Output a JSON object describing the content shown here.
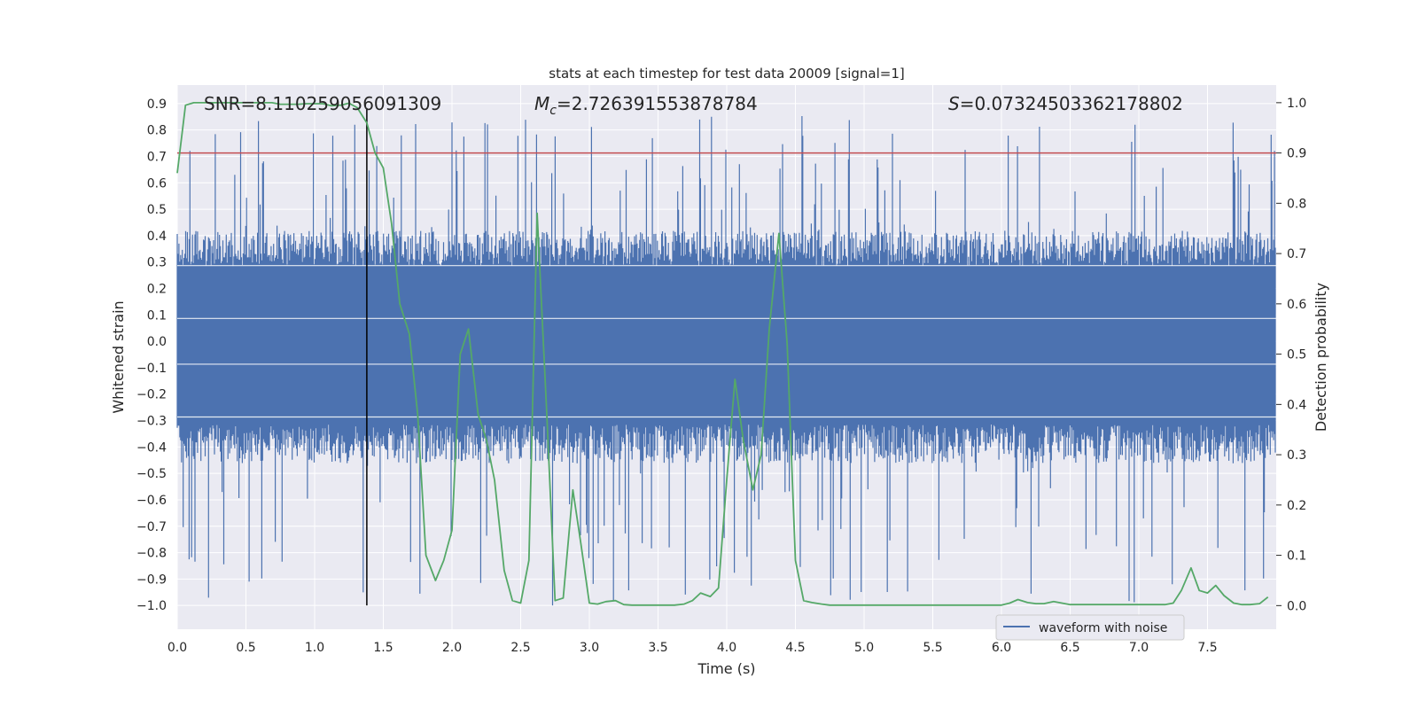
{
  "chart_data": {
    "type": "line",
    "title": "stats at each timestep for test data 20009 [signal=1]",
    "xlabel": "Time (s)",
    "ylabel_left": "Whitened strain",
    "ylabel_right": "Detection probability",
    "xlim": [
      0,
      8
    ],
    "ylim_left": [
      -1.09,
      0.97
    ],
    "ylim_right": [
      -0.047,
      1.035
    ],
    "x_ticks": [
      0.0,
      0.5,
      1.0,
      1.5,
      2.0,
      2.5,
      3.0,
      3.5,
      4.0,
      4.5,
      5.0,
      5.5,
      6.0,
      6.5,
      7.0,
      7.5
    ],
    "x_tick_labels": [
      "0.0",
      "0.5",
      "1.0",
      "1.5",
      "2.0",
      "2.5",
      "3.0",
      "3.5",
      "4.0",
      "4.5",
      "5.0",
      "5.5",
      "6.0",
      "6.5",
      "7.0",
      "7.5"
    ],
    "y_left_ticks": [
      0.9,
      0.8,
      0.7,
      0.6,
      0.5,
      0.4,
      0.3,
      0.2,
      0.1,
      0.0,
      -0.1,
      -0.2,
      -0.3,
      -0.4,
      -0.5,
      -0.6,
      -0.7,
      -0.8,
      -0.9,
      -1.0
    ],
    "y_left_tick_labels": [
      "0.9",
      "0.8",
      "0.7",
      "0.6",
      "0.5",
      "0.4",
      "0.3",
      "0.2",
      "0.1",
      "0.0",
      "−0.1",
      "−0.2",
      "−0.3",
      "−0.4",
      "−0.5",
      "−0.6",
      "−0.7",
      "−0.8",
      "−0.9",
      "−1.0"
    ],
    "y_right_ticks": [
      1.0,
      0.9,
      0.8,
      0.7,
      0.6,
      0.5,
      0.4,
      0.3,
      0.2,
      0.1,
      0.0
    ],
    "y_right_tick_labels": [
      "1.0",
      "0.9",
      "0.8",
      "0.7",
      "0.6",
      "0.5",
      "0.4",
      "0.3",
      "0.2",
      "0.1",
      "0.0"
    ],
    "grid": true,
    "legend": {
      "position": "lower-right",
      "entries": [
        "waveform with noise"
      ]
    },
    "annotations": {
      "snr": "SNR=8.110259056091309",
      "mc_symbol": "M",
      "mc_sub": "c",
      "mc_value": "=2.726391553878784",
      "s_symbol": "S",
      "s_value": "=0.07324503362178802"
    },
    "threshold_line": {
      "axis": "right",
      "value": 0.9,
      "color": "#c44e52"
    },
    "vertical_marker": {
      "x": 1.38,
      "color": "#000000"
    },
    "series": [
      {
        "name": "waveform with noise",
        "axis": "left",
        "color": "#4c72b0",
        "kind": "noise",
        "band": [
          -0.42,
          0.38
        ],
        "peak_range": [
          -1.0,
          0.86
        ]
      },
      {
        "axis": "right",
        "color": "#55a868",
        "x": [
          0.0,
          0.06,
          0.12,
          0.19,
          0.25,
          0.31,
          0.38,
          0.44,
          0.5,
          0.56,
          0.62,
          0.69,
          0.75,
          0.81,
          0.88,
          0.94,
          1.0,
          1.06,
          1.12,
          1.19,
          1.25,
          1.31,
          1.38,
          1.44,
          1.5,
          1.56,
          1.62,
          1.69,
          1.75,
          1.81,
          1.88,
          1.94,
          2.0,
          2.06,
          2.12,
          2.19,
          2.25,
          2.31,
          2.38,
          2.44,
          2.5,
          2.56,
          2.62,
          2.69,
          2.75,
          2.81,
          2.88,
          2.94,
          3.0,
          3.06,
          3.12,
          3.19,
          3.25,
          3.31,
          3.38,
          3.44,
          3.5,
          3.56,
          3.62,
          3.69,
          3.75,
          3.81,
          3.88,
          3.94,
          4.0,
          4.06,
          4.12,
          4.19,
          4.25,
          4.31,
          4.38,
          4.44,
          4.5,
          4.56,
          4.62,
          4.69,
          4.75,
          4.81,
          4.88,
          4.94,
          5.0,
          5.5,
          6.0,
          6.06,
          6.12,
          6.19,
          6.25,
          6.31,
          6.38,
          6.44,
          6.5,
          6.75,
          7.0,
          7.19,
          7.25,
          7.31,
          7.38,
          7.44,
          7.5,
          7.56,
          7.62,
          7.69,
          7.75,
          7.81,
          7.88,
          7.94
        ],
        "values": [
          0.86,
          0.995,
          1.0,
          1.0,
          1.0,
          1.0,
          1.0,
          1.0,
          1.0,
          1.0,
          1.0,
          1.0,
          0.997,
          0.997,
          0.997,
          0.998,
          0.998,
          0.998,
          0.994,
          0.995,
          0.999,
          0.99,
          0.96,
          0.9,
          0.87,
          0.76,
          0.6,
          0.54,
          0.38,
          0.1,
          0.05,
          0.09,
          0.15,
          0.5,
          0.55,
          0.38,
          0.33,
          0.25,
          0.07,
          0.01,
          0.005,
          0.09,
          0.78,
          0.38,
          0.01,
          0.015,
          0.23,
          0.12,
          0.005,
          0.003,
          0.008,
          0.01,
          0.002,
          0.001,
          0.001,
          0.001,
          0.001,
          0.001,
          0.001,
          0.003,
          0.01,
          0.025,
          0.018,
          0.035,
          0.25,
          0.45,
          0.33,
          0.23,
          0.3,
          0.55,
          0.74,
          0.52,
          0.09,
          0.01,
          0.006,
          0.003,
          0.001,
          0.001,
          0.001,
          0.001,
          0.001,
          0.001,
          0.001,
          0.005,
          0.012,
          0.006,
          0.004,
          0.004,
          0.008,
          0.005,
          0.002,
          0.002,
          0.002,
          0.002,
          0.005,
          0.03,
          0.075,
          0.03,
          0.025,
          0.04,
          0.02,
          0.005,
          0.002,
          0.002,
          0.004,
          0.017
        ]
      }
    ]
  }
}
